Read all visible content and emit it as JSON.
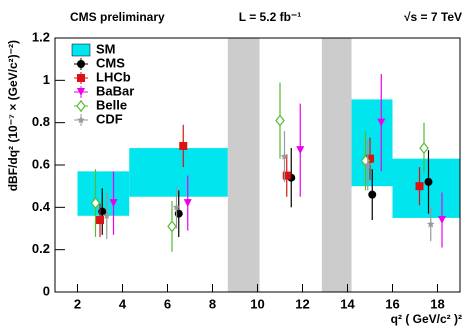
{
  "chart_data": {
    "type": "errorbar",
    "annotations": {
      "left": "CMS preliminary",
      "center": "L = 5.2 fb⁻¹",
      "right": "√s = 7 TeV"
    },
    "x_label": "q² ( GeV/c² )²",
    "y_label": "dBF/dq² (10⁻⁷ × (GeV/c²)⁻²)",
    "xlim": [
      1,
      19
    ],
    "xticks": [
      2,
      4,
      6,
      8,
      10,
      12,
      14,
      16,
      18
    ],
    "ylim": [
      0,
      1.2
    ],
    "yticks": [
      0,
      0.2,
      0.4,
      0.6,
      0.8,
      1,
      1.2
    ],
    "vetoed_regions": [
      [
        8.68,
        10.09
      ],
      [
        12.86,
        14.18
      ]
    ],
    "vetoed_color": "#cccccc",
    "sm": {
      "name": "SM",
      "color": "#00e5ee",
      "x_low": [
        2,
        4.3,
        14.18,
        16
      ],
      "x_high": [
        4.3,
        8.68,
        16,
        19
      ],
      "y_low": [
        0.36,
        0.45,
        0.5,
        0.35
      ],
      "y_high": [
        0.57,
        0.68,
        0.91,
        0.63
      ]
    },
    "series": [
      {
        "name": "CMS",
        "color": "#000000",
        "marker": "circle",
        "x": [
          3.1,
          6.5,
          11.5,
          15.1,
          17.6
        ],
        "values": [
          0.38,
          0.37,
          0.54,
          0.46,
          0.52
        ],
        "errors": [
          0.11,
          0.11,
          0.14,
          0.12,
          0.15
        ]
      },
      {
        "name": "LHCb",
        "color": "#dd1111",
        "marker": "square",
        "x": [
          3.0,
          6.7,
          11.3,
          15.0,
          17.2
        ],
        "values": [
          0.34,
          0.69,
          0.55,
          0.63,
          0.5
        ],
        "errors": [
          0.08,
          0.1,
          0.1,
          0.1,
          0.09
        ]
      },
      {
        "name": "BaBar",
        "color": "#ee00ee",
        "marker": "triangle",
        "x": [
          3.6,
          6.9,
          11.9,
          15.5,
          18.2
        ],
        "values": [
          0.42,
          0.42,
          0.67,
          0.8,
          0.34
        ],
        "errors": [
          0.15,
          0.13,
          0.22,
          0.23,
          0.13
        ]
      },
      {
        "name": "Belle",
        "color": "#55bb33",
        "marker": "diamond",
        "x": [
          2.8,
          6.2,
          11.0,
          14.8,
          17.4
        ],
        "values": [
          0.42,
          0.31,
          0.81,
          0.62,
          0.68
        ],
        "errors": [
          0.16,
          0.12,
          0.18,
          0.14,
          0.12
        ]
      },
      {
        "name": "CDF",
        "color": "#999999",
        "marker": "star",
        "x": [
          3.3,
          6.4,
          11.2,
          14.9,
          17.7
        ],
        "values": [
          0.36,
          0.4,
          0.64,
          0.6,
          0.32
        ],
        "errors": [
          0.11,
          0.1,
          0.12,
          0.12,
          0.08
        ]
      }
    ]
  }
}
